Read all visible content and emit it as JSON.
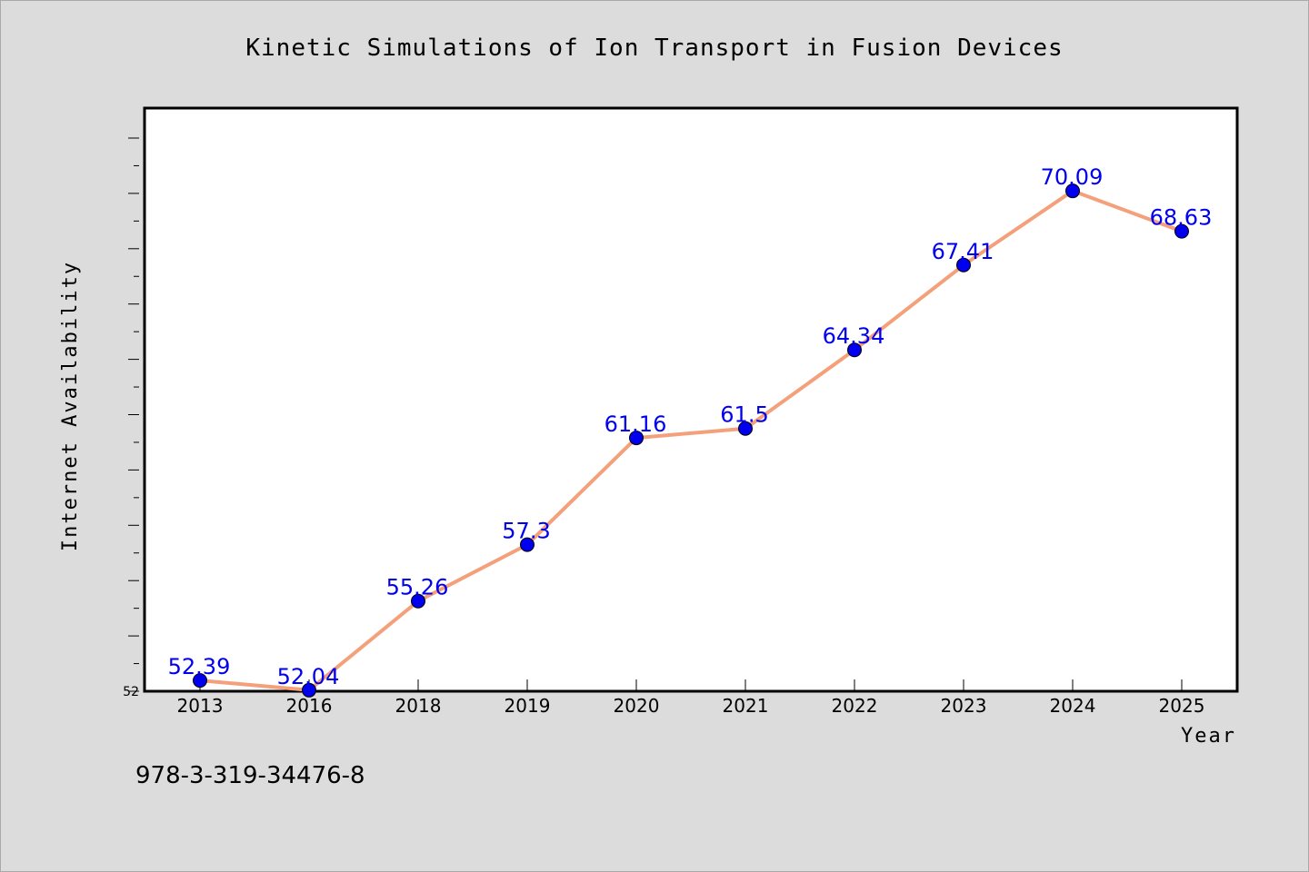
{
  "chart_data": {
    "type": "line",
    "title": "Kinetic Simulations of Ion Transport in Fusion Devices",
    "xlabel": "Year",
    "ylabel": "Internet Availability",
    "categories": [
      "2013",
      "2016",
      "2018",
      "2019",
      "2020",
      "2021",
      "2022",
      "2023",
      "2024",
      "2025"
    ],
    "series": [
      {
        "values": [
          52.39,
          52.04,
          55.26,
          57.3,
          61.16,
          61.5,
          64.34,
          67.41,
          70.09,
          68.63
        ],
        "labels": [
          "52.39",
          "52.04",
          "55.26",
          "57.3",
          "61.16",
          "61.5",
          "64.34",
          "67.41",
          "70.09",
          "68.63"
        ]
      }
    ],
    "ylim": [
      52,
      72
    ],
    "y_tick_labels": [
      "52"
    ],
    "grid": false,
    "colors": {
      "line": "#f4a07a",
      "marker": "#0000ee",
      "label": "#0000ee",
      "plot_bg": "#ffffff",
      "figure_bg": "#dcdcdc"
    }
  },
  "footer": {
    "isbn": "978-3-319-34476-8"
  }
}
